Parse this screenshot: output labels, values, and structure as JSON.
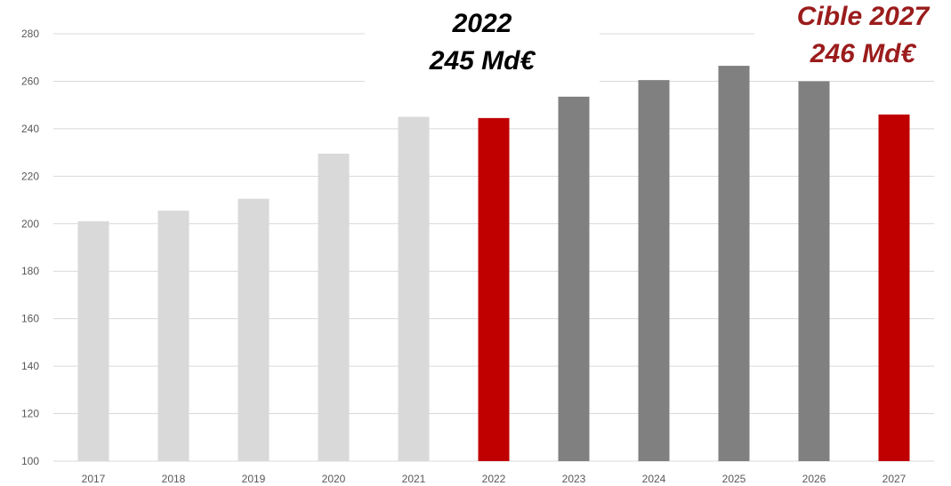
{
  "chart_data": {
    "type": "bar",
    "categories": [
      "2017",
      "2018",
      "2019",
      "2020",
      "2021",
      "2022",
      "2023",
      "2024",
      "2025",
      "2026",
      "2027"
    ],
    "values": [
      201,
      205.5,
      210.5,
      229.5,
      245,
      244.5,
      253.5,
      260.5,
      266.5,
      260,
      246
    ],
    "bar_colors": [
      "#d9d9d9",
      "#d9d9d9",
      "#d9d9d9",
      "#d9d9d9",
      "#d9d9d9",
      "#c00000",
      "#808080",
      "#808080",
      "#808080",
      "#808080",
      "#c00000"
    ],
    "ylim": [
      100,
      280
    ],
    "yticks": [
      100,
      120,
      140,
      160,
      180,
      200,
      220,
      240,
      260,
      280
    ],
    "grid": true,
    "annotations": [
      {
        "line1": "2022",
        "line2": "245 Md€",
        "color": "#000000"
      },
      {
        "line1": "Cible 2027",
        "line2": "246 Md€",
        "color": "#9b1c1c"
      }
    ]
  }
}
